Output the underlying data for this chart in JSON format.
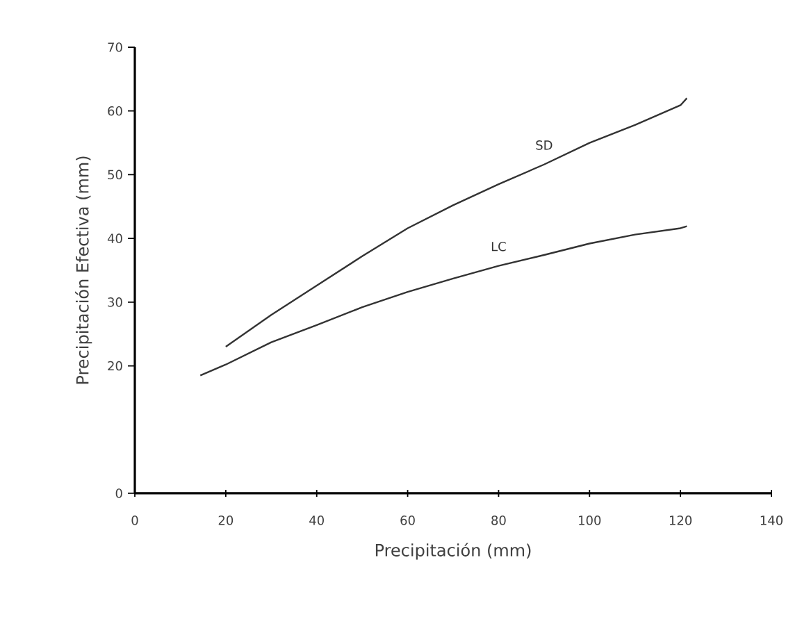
{
  "chart_data": {
    "type": "line",
    "xlabel": "Precipitación (mm)",
    "ylabel": "Precipitación Efectiva (mm)",
    "xlim": [
      0,
      140
    ],
    "xticks": [
      0,
      20,
      40,
      60,
      80,
      100,
      120,
      140
    ],
    "ylim": [
      0,
      70
    ],
    "yticks": [
      0,
      20,
      30,
      40,
      50,
      60,
      70
    ],
    "grid": false,
    "legend": false,
    "marker": "none",
    "line_style": "solid",
    "series": [
      {
        "name": "SD",
        "color": "#333333",
        "x": [
          20,
          30,
          40,
          50,
          60,
          70,
          80,
          90,
          100,
          110,
          120,
          121.4
        ],
        "values": [
          23,
          28,
          32.6,
          37.2,
          41.6,
          45.2,
          48.5,
          51.6,
          55,
          57.8,
          60.9,
          62
        ]
      },
      {
        "name": "LC",
        "color": "#333333",
        "x": [
          14.4,
          20,
          30,
          40,
          50,
          60,
          70,
          80,
          90,
          100,
          110,
          120,
          121.4
        ],
        "values": [
          18.5,
          20.2,
          23.7,
          26.4,
          29.2,
          31.6,
          33.7,
          35.7,
          37.4,
          39.2,
          40.6,
          41.6,
          41.9
        ]
      }
    ]
  }
}
